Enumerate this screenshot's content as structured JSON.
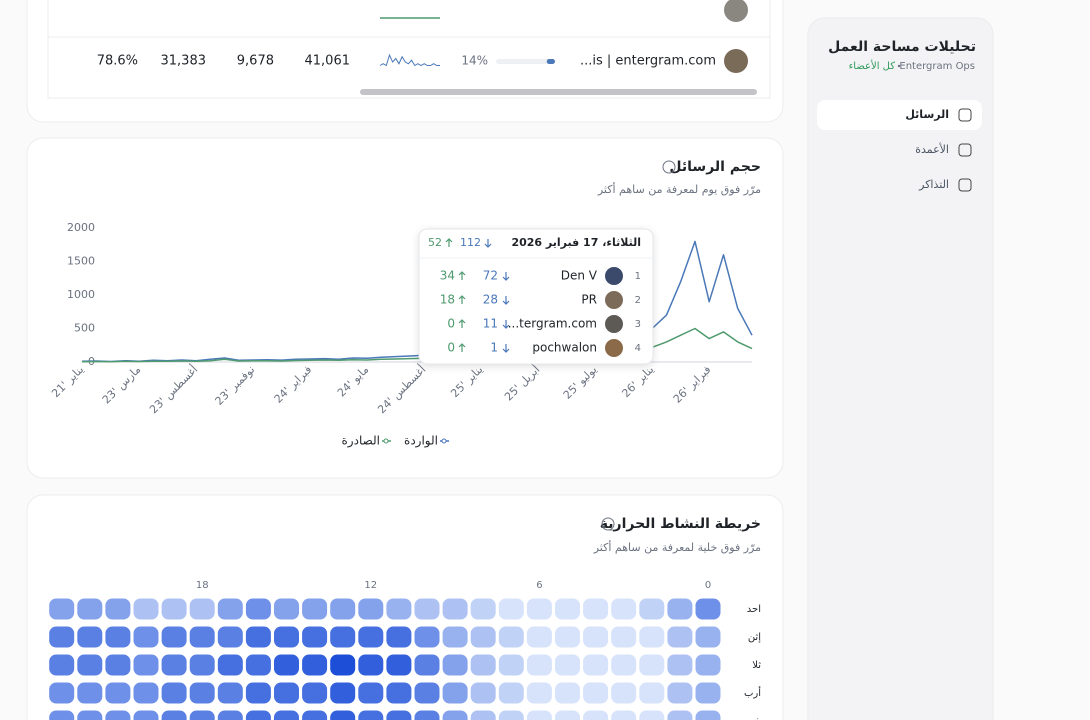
{
  "sidebar": {
    "title": "تحليلات مساحة العمل",
    "workspace": "Entergram Ops",
    "scope": "كل الأعضاء",
    "nav": [
      "الرسائل",
      "الأعمدة",
      "التذاكر"
    ],
    "active": 0
  },
  "table": {
    "row": {
      "name": "...is | entergram.com",
      "progress": {
        "value": 14,
        "label": "14%"
      },
      "sparkline": [
        2,
        3,
        2,
        8,
        4,
        6,
        3,
        7,
        4,
        3,
        5,
        2,
        3,
        2,
        3,
        2,
        2,
        3,
        2,
        2
      ],
      "cells": [
        "41,061",
        "9,678",
        "31,383",
        "78.6%"
      ]
    }
  },
  "chart_data": {
    "type": "line",
    "title": "حجم الرسائل",
    "subtitle": "مرّر فوق يوم لمعرفة من ساهم أكثر",
    "x": [
      "21' يناير",
      null,
      null,
      null,
      "23' مارس",
      null,
      null,
      null,
      "23' أغسطس",
      null,
      null,
      null,
      "23' نوفمبر",
      null,
      null,
      null,
      "24' فبراير",
      null,
      null,
      null,
      "24' مايو",
      null,
      null,
      null,
      "24' أغسطس",
      null,
      null,
      null,
      "25' يناير",
      null,
      null,
      null,
      "25' أبريل",
      null,
      null,
      null,
      "25' يوليو",
      null,
      null,
      null,
      "26' يناير",
      null,
      null,
      null,
      "26' فبراير",
      null,
      null,
      null
    ],
    "series": [
      {
        "name": "الواردة",
        "color": "#4a78b8",
        "values": [
          10,
          15,
          8,
          20,
          12,
          25,
          18,
          30,
          20,
          40,
          60,
          25,
          30,
          35,
          28,
          40,
          45,
          50,
          40,
          60,
          55,
          70,
          80,
          90,
          100,
          120,
          200,
          150,
          180,
          250,
          160,
          220,
          300,
          250,
          200,
          280,
          300,
          350,
          400,
          450,
          500,
          700,
          1200,
          1800,
          900,
          1600,
          800,
          400
        ]
      },
      {
        "name": "الصادرة",
        "color": "#4f9a6e",
        "values": [
          5,
          8,
          5,
          10,
          8,
          12,
          10,
          15,
          12,
          20,
          40,
          15,
          18,
          20,
          15,
          22,
          25,
          30,
          25,
          35,
          30,
          40,
          45,
          50,
          55,
          60,
          80,
          70,
          90,
          100,
          80,
          110,
          120,
          100,
          90,
          110,
          130,
          150,
          180,
          200,
          220,
          300,
          400,
          500,
          350,
          450,
          300,
          200
        ]
      }
    ],
    "ylim": [
      0,
      2000
    ],
    "yticks": [
      0,
      500,
      1000,
      1500,
      2000
    ],
    "tooltip": {
      "date": "الثلاثاء، 17 فبراير 2026",
      "total_in": "112",
      "total_out": "52",
      "rows": [
        {
          "rank": "1",
          "name": "Den V",
          "in": "72",
          "out": "34"
        },
        {
          "rank": "2",
          "name": "PR",
          "in": "28",
          "out": "18"
        },
        {
          "rank": "3",
          "name": "...tergram.com",
          "in": "11",
          "out": "0"
        },
        {
          "rank": "4",
          "name": "pochwalon",
          "in": "1",
          "out": "0"
        }
      ]
    }
  },
  "heatmap": {
    "type": "heatmap",
    "title": "خريطة النشاط الحرارية",
    "subtitle": "مرّر فوق خلية لمعرفة من ساهم أكثر",
    "hour_ticks": [
      0,
      6,
      12,
      18
    ],
    "colors": [
      "#d6e3fb",
      "#1d4ed8"
    ],
    "days": [
      "احد",
      "إثن",
      "ثلا",
      "أرب",
      "خمي"
    ],
    "values": [
      [
        6,
        4,
        2,
        1,
        1,
        1,
        1,
        1,
        2,
        3,
        3,
        4,
        5,
        5,
        5,
        5,
        6,
        5,
        3,
        3,
        3,
        5,
        5,
        5
      ],
      [
        4,
        3,
        1,
        1,
        1,
        1,
        1,
        2,
        3,
        4,
        6,
        8,
        8,
        8,
        8,
        8,
        8,
        7,
        7,
        7,
        6,
        7,
        7,
        7
      ],
      [
        4,
        3,
        1,
        1,
        1,
        1,
        1,
        2,
        3,
        5,
        7,
        9,
        9,
        10,
        9,
        9,
        8,
        8,
        7,
        7,
        6,
        7,
        7,
        7
      ],
      [
        4,
        3,
        1,
        1,
        1,
        1,
        1,
        2,
        3,
        5,
        7,
        8,
        8,
        9,
        8,
        8,
        8,
        7,
        7,
        7,
        6,
        6,
        6,
        6
      ],
      [
        4,
        3,
        1,
        1,
        1,
        1,
        1,
        2,
        3,
        5,
        7,
        8,
        8,
        9,
        8,
        8,
        8,
        7,
        7,
        7,
        6,
        6,
        6,
        6
      ]
    ]
  }
}
